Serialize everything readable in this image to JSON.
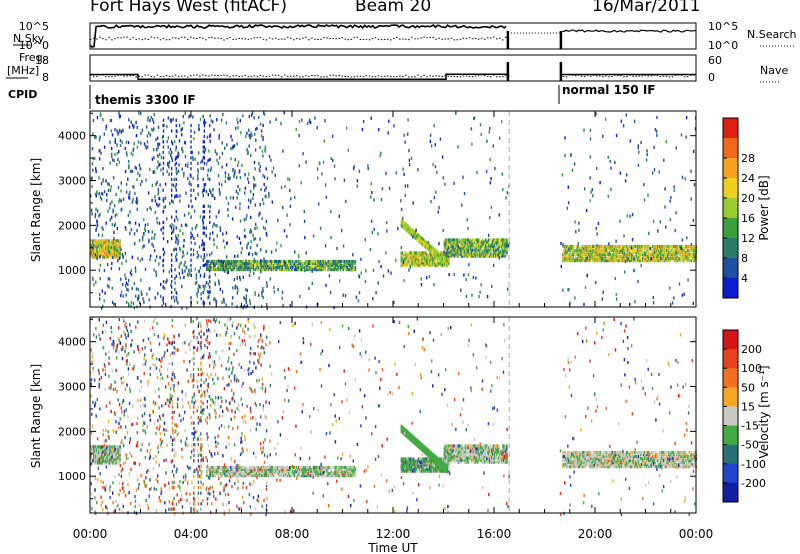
{
  "title": {
    "station": "Fort Hays West (fitACF)",
    "beam": "Beam 20",
    "date": "16/Mar/2011"
  },
  "chart_data": [
    {
      "type": "line",
      "panel": "noise",
      "left_label": "N.Sky",
      "right_label": "N.Search",
      "left_ticks": [
        "10^5",
        "10^0"
      ],
      "right_ticks": [
        "10^5",
        "10^0"
      ],
      "series": [
        {
          "name": "N.Sky",
          "style": "solid"
        },
        {
          "name": "N.Search",
          "style": "dotted"
        }
      ]
    },
    {
      "type": "line",
      "panel": "frequency",
      "left_label": "Freq.",
      "left_unit": "[MHz]",
      "right_label": "Nave",
      "left_ticks": [
        "18",
        "8"
      ],
      "right_ticks": [
        "60",
        "0"
      ],
      "x": [
        0,
        1.9,
        1.9,
        14.1,
        14.1,
        16.5,
        16.6,
        18.6,
        18.65,
        24
      ],
      "freq_mhz": [
        10.5,
        10.5,
        8.7,
        8.7,
        10.6,
        10.6,
        null,
        null,
        10.5,
        10.5
      ],
      "series": [
        {
          "name": "Freq.",
          "style": "solid"
        },
        {
          "name": "Nave",
          "style": "dotted"
        }
      ]
    },
    {
      "type": "table",
      "panel": "cpid",
      "label": "CPID",
      "segments": [
        {
          "start": 0,
          "end": 18.6,
          "text": "themis 3300 IF"
        },
        {
          "start": 18.6,
          "end": 24,
          "text": "normal 150 IF"
        }
      ]
    },
    {
      "type": "heatmap",
      "panel": "power",
      "ylabel": "Slant Range [km]",
      "yticks": [
        1000,
        2000,
        3000,
        4000
      ],
      "ylim": [
        180,
        4550
      ],
      "xlim": [
        0,
        24
      ],
      "colorbar_label": "Power [dB]",
      "colorbar_ticks": [
        "4",
        "8",
        "12",
        "16",
        "20",
        "24",
        "28"
      ],
      "colorbar_colors": [
        "#0a1ecf",
        "#1e4fa0",
        "#2b7b6a",
        "#3aa03a",
        "#9ccb2f",
        "#f0d01e",
        "#f5a020",
        "#ee6a1a",
        "#dd1f14"
      ],
      "bands": [
        {
          "t0": 0.0,
          "t1": 1.2,
          "r0": 1330,
          "r1": 1700,
          "level": 0.6
        },
        {
          "t0": 4.6,
          "t1": 10.5,
          "r0": 1050,
          "r1": 1250,
          "level": 0.35
        },
        {
          "t0": 12.3,
          "t1": 14.2,
          "r0": 1150,
          "r1": 1450,
          "level": 0.55
        },
        {
          "t0": 14.0,
          "t1": 16.5,
          "r0": 1350,
          "r1": 1750,
          "level": 0.4
        },
        {
          "t0": 18.7,
          "t1": 24.0,
          "r0": 1250,
          "r1": 1600,
          "level": 0.55
        }
      ]
    },
    {
      "type": "heatmap",
      "panel": "velocity",
      "ylabel": "Slant Range [km]",
      "yticks": [
        1000,
        2000,
        3000,
        4000
      ],
      "ylim": [
        180,
        4550
      ],
      "xlim": [
        0,
        24
      ],
      "xlabel": "Time UT",
      "xticks": [
        "00:00",
        "04:00",
        "08:00",
        "12:00",
        "16:00",
        "20:00",
        "00:00"
      ],
      "colorbar_label": "Velocity [m s⁻¹]",
      "colorbar_ticks": [
        "200",
        "100",
        "50",
        "15",
        "-15",
        "-50",
        "-100",
        "-200"
      ],
      "colorbar_colors": [
        "#1020a0",
        "#2244cc",
        "#2b6f7a",
        "#44aa44",
        "#c9c9c2",
        "#f5a623",
        "#f07020",
        "#e8401a",
        "#d91414"
      ],
      "bands": [
        {
          "t0": 0.0,
          "t1": 1.2,
          "r0": 1330,
          "r1": 1700,
          "level": 0.45
        },
        {
          "t0": 4.6,
          "t1": 10.5,
          "r0": 1050,
          "r1": 1250,
          "level": 0.45
        },
        {
          "t0": 12.3,
          "t1": 14.2,
          "r0": 1150,
          "r1": 1450,
          "level": 0.35
        },
        {
          "t0": 14.0,
          "t1": 16.5,
          "r0": 1350,
          "r1": 1750,
          "level": 0.45
        },
        {
          "t0": 18.7,
          "t1": 24.0,
          "r0": 1250,
          "r1": 1600,
          "level": 0.48
        }
      ]
    }
  ]
}
